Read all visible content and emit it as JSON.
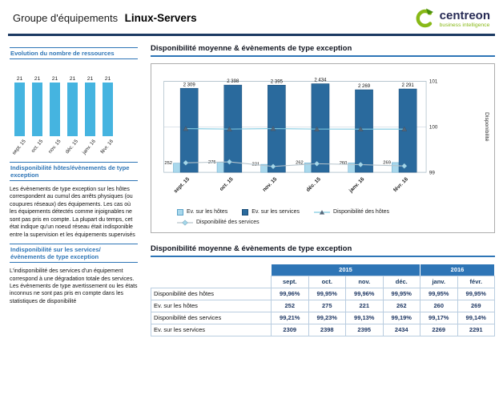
{
  "colors": {
    "accent_blue": "#2e75b6",
    "navy": "#17375e",
    "light_bar": "#a9d8ec",
    "dark_bar": "#2a6a9d",
    "sidebar_bar": "#45b4e0",
    "host_line": "#7fc9e0",
    "service_line": "#b6c4cc",
    "logo_green": "#88b917"
  },
  "header": {
    "title_prefix": "Groupe d'équipements",
    "title_name": "Linux-Servers",
    "logo_brand": "centreon",
    "logo_tagline": "business intelligence"
  },
  "sidebar": {
    "sections": [
      {
        "title": "Indisponibilité hôtes/évènements de type exception",
        "body": "Les évènements de type exception sur les hôtes correspondent au cumul des arrêts physiques (ou coupures réseaux) des équipements. Les cas où les équipements détectés comme injoignables ne sont pas pris en compte. La plupart du temps, cet état indique qu'un noeud réseau était indisponible entre la supervision et les équipements supervisés"
      },
      {
        "title": "Indisponibilité sur les services/ évènements de type exception",
        "body": "L'indisponibilité des services d'un équipement correspond à une dégradation totale des services. Les évènements de type avertissement ou les états inconnus ne sont pas pris en compte dans les statistiques de disponibilité"
      }
    ]
  },
  "chart_data": [
    {
      "id": "resources-count",
      "type": "bar",
      "title": "Evolution du nombre de ressources",
      "categories": [
        "sept. 15",
        "oct. 15",
        "nov. 15",
        "déc. 15",
        "janv. 16",
        "févr. 16"
      ],
      "values": [
        21,
        21,
        21,
        21,
        21,
        21
      ],
      "ylim": [
        0,
        25
      ],
      "grid": false,
      "legend": false
    },
    {
      "id": "availability-and-events",
      "type": "bar",
      "subtype": "bar+line combo",
      "title": "Disponibilité moyenne & évènements de type exception",
      "categories": [
        "sept. 15",
        "oct. 15",
        "nov. 15",
        "déc. 15",
        "janv. 16",
        "févr. 16"
      ],
      "series": [
        {
          "name": "Ev. sur les hôtes",
          "type": "bar",
          "axis": "left",
          "values": [
            252,
            275,
            221,
            262,
            260,
            269
          ],
          "labels": [
            "252",
            "275",
            "221",
            "262",
            "260",
            "269"
          ]
        },
        {
          "name": "Ev. sur les services",
          "type": "bar",
          "axis": "left",
          "values": [
            2309,
            2398,
            2395,
            2434,
            2269,
            2291
          ],
          "labels": [
            "2 309",
            "2 398",
            "2 395",
            "2 434",
            "2 269",
            "2 291"
          ]
        },
        {
          "name": "Disponibilité des hôtes",
          "type": "line",
          "marker": "triangle",
          "axis": "right",
          "values": [
            99.96,
            99.95,
            99.96,
            99.95,
            99.95,
            99.95
          ]
        },
        {
          "name": "Disponibilité des services",
          "type": "line",
          "marker": "diamond",
          "axis": "right",
          "values": [
            99.21,
            99.23,
            99.13,
            99.19,
            99.17,
            99.14
          ]
        }
      ],
      "right_axis": {
        "label": "Disponibilité",
        "min": 99,
        "max": 101,
        "ticks": [
          99,
          100,
          101
        ]
      },
      "left_axis": {
        "min": 0,
        "max": 2500,
        "visible": false
      },
      "legend_position": "bottom",
      "grid": true
    },
    {
      "id": "availability-summary-table",
      "type": "table",
      "title": "Disponibilité moyenne & évènements de type exception",
      "year_groups": [
        {
          "label": "2015",
          "span": 4
        },
        {
          "label": "2016",
          "span": 2
        }
      ],
      "columns": [
        "sept.",
        "oct.",
        "nov.",
        "déc.",
        "janv.",
        "févr."
      ],
      "rows": [
        {
          "label": "Disponibilité des hôtes",
          "values": [
            "99,96%",
            "99,95%",
            "99,96%",
            "99,95%",
            "99,95%",
            "99,95%"
          ]
        },
        {
          "label": "Ev. sur les hôtes",
          "values": [
            "252",
            "275",
            "221",
            "262",
            "260",
            "269"
          ]
        },
        {
          "label": "Disponibilité des services",
          "values": [
            "99,21%",
            "99,23%",
            "99,13%",
            "99,19%",
            "99,17%",
            "99,14%"
          ]
        },
        {
          "label": "Ev. sur les services",
          "values": [
            "2309",
            "2398",
            "2395",
            "2434",
            "2269",
            "2291"
          ]
        }
      ]
    }
  ]
}
